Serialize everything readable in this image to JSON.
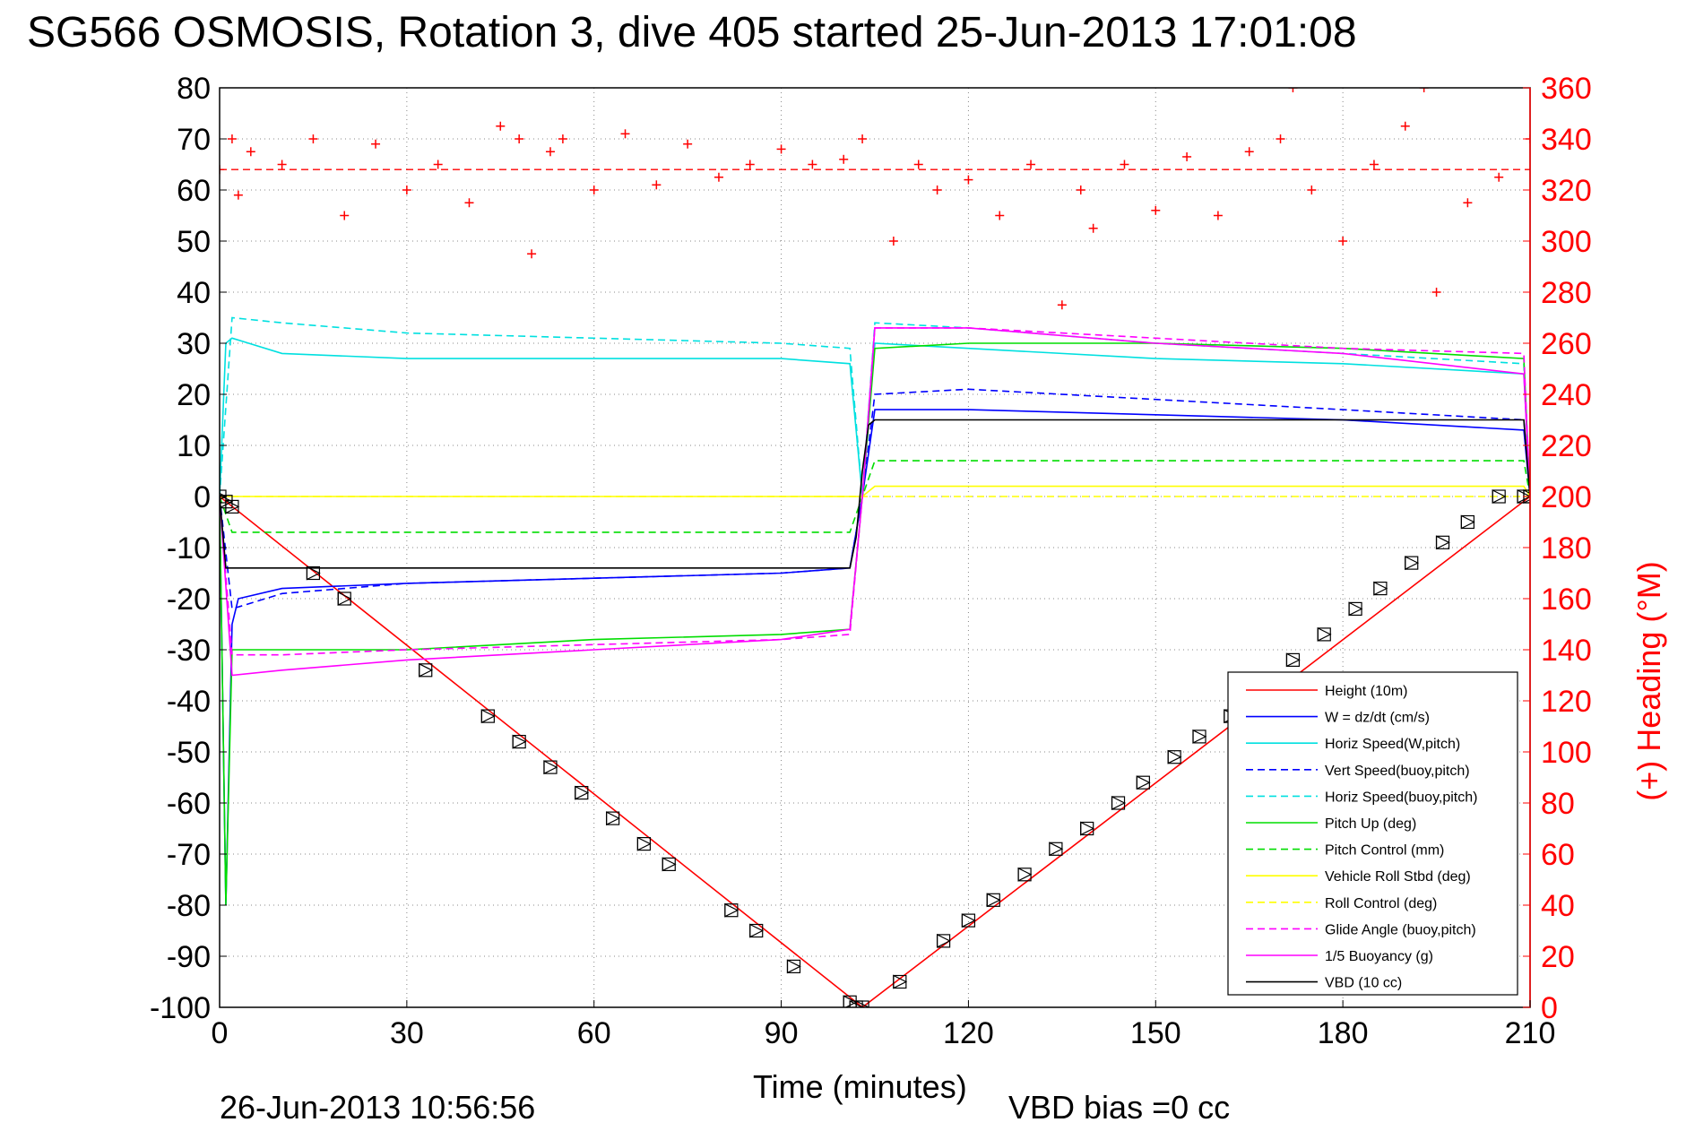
{
  "chart_data": {
    "type": "line",
    "title": "SG566 OSMOSIS, Rotation 3, dive 405 started 25-Jun-2013 17:01:08",
    "xlabel": "Time (minutes)",
    "ylabel": "",
    "y2label": "(+) Heading (°M)",
    "xlim": [
      0,
      210
    ],
    "ylim": [
      -100,
      80
    ],
    "y2lim": [
      0,
      360
    ],
    "x_ticks": [
      0,
      30,
      60,
      90,
      120,
      150,
      180,
      210
    ],
    "y_ticks": [
      80,
      70,
      60,
      50,
      40,
      30,
      20,
      10,
      0,
      -10,
      -20,
      -30,
      -40,
      -50,
      -60,
      -70,
      -80,
      -90,
      -100
    ],
    "y2_ticks": [
      360,
      340,
      320,
      300,
      280,
      260,
      240,
      220,
      200,
      180,
      160,
      140,
      120,
      100,
      80,
      60,
      40,
      20,
      0
    ],
    "grid": true,
    "legend_position": "bottom-right",
    "footer_date": "26-Jun-2013 10:56:56",
    "footer_bias": "VBD bias =0 cc",
    "series": [
      {
        "name": "Height (10m)",
        "color": "#ff0000",
        "style": "solid",
        "x": [
          0,
          102,
          103,
          210
        ],
        "y": [
          0,
          -99,
          -100,
          0
        ]
      },
      {
        "name": "W = dz/dt (cm/s)",
        "color": "#0000ff",
        "style": "solid",
        "x": [
          0,
          1,
          2,
          3,
          10,
          30,
          60,
          90,
          101,
          103,
          105,
          120,
          150,
          180,
          209,
          210
        ],
        "y": [
          0,
          -80,
          -25,
          -20,
          -18,
          -17,
          -16,
          -15,
          -14,
          0,
          17,
          17,
          16,
          15,
          13,
          0
        ]
      },
      {
        "name": "Horiz Speed(W,pitch)",
        "color": "#00e0e0",
        "style": "solid",
        "x": [
          0,
          1,
          2,
          10,
          30,
          60,
          90,
          101,
          103,
          105,
          120,
          150,
          180,
          209,
          210
        ],
        "y": [
          0,
          30,
          31,
          28,
          27,
          27,
          27,
          26,
          0,
          30,
          29,
          27,
          26,
          24,
          0
        ]
      },
      {
        "name": "Vert Speed(buoy,pitch)",
        "color": "#0000ff",
        "style": "dashed",
        "x": [
          0,
          2,
          10,
          30,
          60,
          90,
          101,
          103,
          105,
          120,
          150,
          180,
          209,
          210
        ],
        "y": [
          0,
          -22,
          -19,
          -17,
          -16,
          -15,
          -14,
          0,
          20,
          21,
          19,
          17,
          15,
          0
        ]
      },
      {
        "name": "Horiz Speed(buoy,pitch)",
        "color": "#00e0e0",
        "style": "dashed",
        "x": [
          0,
          2,
          10,
          30,
          60,
          90,
          101,
          103,
          105,
          120,
          150,
          180,
          209,
          210
        ],
        "y": [
          0,
          35,
          34,
          32,
          31,
          30,
          29,
          0,
          34,
          33,
          30,
          28,
          26,
          0
        ]
      },
      {
        "name": "Pitch Up (deg)",
        "color": "#00dd00",
        "style": "solid",
        "x": [
          0,
          1,
          2,
          10,
          30,
          60,
          90,
          101,
          103,
          105,
          120,
          150,
          180,
          209,
          210
        ],
        "y": [
          0,
          -80,
          -30,
          -30,
          -30,
          -28,
          -27,
          -26,
          0,
          29,
          30,
          30,
          29,
          27,
          0
        ]
      },
      {
        "name": "Pitch Control (mm)",
        "color": "#00dd00",
        "style": "dashed",
        "x": [
          0,
          2,
          101,
          103,
          105,
          209,
          210
        ],
        "y": [
          0,
          -7,
          -7,
          0,
          7,
          7,
          0
        ]
      },
      {
        "name": "Vehicle Roll Stbd (deg)",
        "color": "#ffff00",
        "style": "solid",
        "x": [
          0,
          2,
          101,
          103,
          105,
          209,
          210
        ],
        "y": [
          0,
          0,
          0,
          0,
          2,
          2,
          0
        ]
      },
      {
        "name": "Roll Control (deg)",
        "color": "#ffff00",
        "style": "dashed",
        "x": [
          0,
          2,
          101,
          103,
          105,
          209,
          210
        ],
        "y": [
          0,
          0,
          0,
          0,
          0,
          0,
          0
        ]
      },
      {
        "name": "Glide Angle (buoy,pitch)",
        "color": "#ff00ff",
        "style": "dashed",
        "x": [
          0,
          2,
          10,
          30,
          60,
          90,
          101,
          103,
          105,
          120,
          150,
          180,
          209,
          210
        ],
        "y": [
          0,
          -31,
          -31,
          -30,
          -29,
          -28,
          -27,
          0,
          33,
          33,
          31,
          29,
          28,
          0
        ]
      },
      {
        "name": "1/5 Buoyancy (g)",
        "color": "#ff00ff",
        "style": "solid",
        "x": [
          0,
          2,
          10,
          30,
          60,
          90,
          101,
          103,
          105,
          120,
          150,
          180,
          209,
          210
        ],
        "y": [
          0,
          -35,
          -34,
          -32,
          -30,
          -28,
          -26,
          0,
          33,
          33,
          30,
          28,
          24,
          0
        ]
      },
      {
        "name": "VBD (10 cc)",
        "color": "#000000",
        "style": "solid",
        "x": [
          0,
          1,
          101,
          102,
          103,
          104,
          105,
          209,
          210
        ],
        "y": [
          0,
          -14,
          -14,
          -8,
          5,
          14,
          15,
          15,
          0
        ]
      }
    ],
    "heading": {
      "color": "#ff0000",
      "marker": "+",
      "mean": 328,
      "x": [
        0,
        2,
        3,
        5,
        10,
        15,
        20,
        25,
        30,
        35,
        40,
        45,
        48,
        50,
        53,
        55,
        60,
        65,
        70,
        75,
        80,
        85,
        90,
        95,
        100,
        103,
        108,
        112,
        115,
        120,
        125,
        130,
        135,
        138,
        140,
        145,
        150,
        155,
        160,
        165,
        170,
        172,
        175,
        180,
        185,
        190,
        193,
        195,
        200,
        205,
        210
      ],
      "y": [
        328,
        340,
        318,
        335,
        330,
        340,
        310,
        338,
        320,
        330,
        315,
        345,
        340,
        295,
        335,
        340,
        320,
        342,
        322,
        338,
        325,
        330,
        336,
        330,
        332,
        340,
        300,
        330,
        320,
        324,
        310,
        330,
        275,
        320,
        305,
        330,
        312,
        333,
        310,
        335,
        340,
        360,
        320,
        300,
        330,
        345,
        360,
        280,
        315,
        325,
        340
      ]
    },
    "markers": {
      "symbol": "square-triangle",
      "color": "#000000",
      "x": [
        0,
        1,
        2,
        15,
        20,
        33,
        43,
        48,
        53,
        58,
        63,
        68,
        72,
        82,
        86,
        92,
        101,
        102,
        103,
        109,
        116,
        120,
        124,
        129,
        134,
        139,
        144,
        148,
        153,
        157,
        162,
        166,
        172,
        177,
        182,
        186,
        191,
        196,
        200,
        205,
        209,
        210
      ],
      "y": [
        0,
        -1,
        -2,
        -15,
        -20,
        -34,
        -43,
        -48,
        -53,
        -58,
        -63,
        -68,
        -72,
        -81,
        -85,
        -92,
        -99,
        -100,
        -100,
        -95,
        -87,
        -83,
        -79,
        -74,
        -69,
        -65,
        -60,
        -56,
        -51,
        -47,
        -43,
        -38,
        -32,
        -27,
        -22,
        -18,
        -13,
        -9,
        -5,
        0,
        0,
        0
      ]
    }
  }
}
